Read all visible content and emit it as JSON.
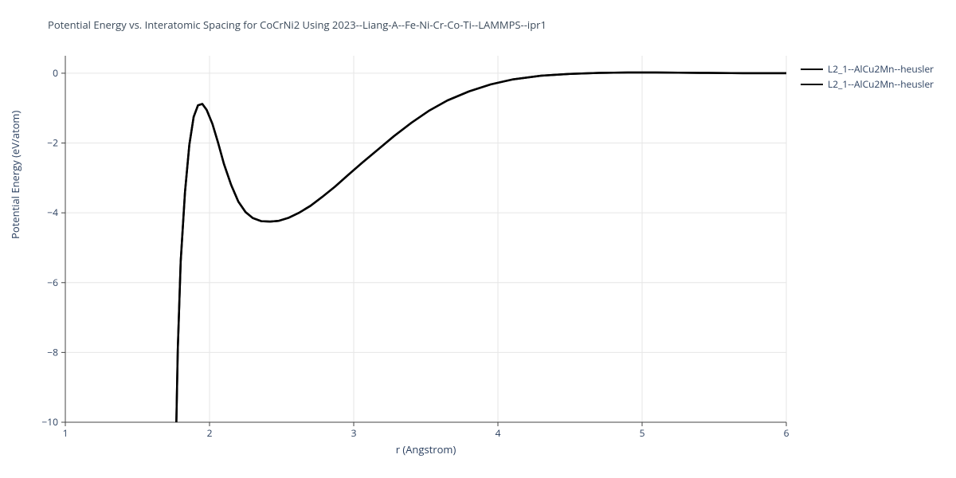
{
  "chart": {
    "title": "Potential Energy vs. Interatomic Spacing for CoCrNi2 Using 2023--Liang-A--Fe-Ni-Cr-Co-Ti--LAMMPS--ipr1",
    "xlabel": "r (Angstrom)",
    "ylabel": "Potential Energy (eV/atom)",
    "xlim": [
      1,
      6
    ],
    "ylim": [
      -10,
      0.5
    ],
    "xticks": [
      1,
      2,
      3,
      4,
      5,
      6
    ],
    "yticks": [
      -10,
      -8,
      -6,
      -4,
      -2,
      0
    ],
    "xtick_labels": [
      "1",
      "2",
      "3",
      "4",
      "5",
      "6"
    ],
    "ytick_labels": [
      "−10",
      "−8",
      "−6",
      "−4",
      "−2",
      "0"
    ],
    "background_color": "#ffffff",
    "grid_color": "#e6e6e6",
    "axis_color": "#444444",
    "tick_label_fontsize": 12,
    "title_fontsize": 13,
    "label_fontsize": 13,
    "line_width": 2.5,
    "series": [
      {
        "name": "L2_1--AlCu2Mn--heusler",
        "color": "#000000",
        "x": [
          1.77,
          1.78,
          1.8,
          1.83,
          1.86,
          1.89,
          1.92,
          1.95,
          1.98,
          2.02,
          2.06,
          2.1,
          2.15,
          2.2,
          2.25,
          2.3,
          2.36,
          2.42,
          2.48,
          2.55,
          2.62,
          2.7,
          2.78,
          2.87,
          2.96,
          3.06,
          3.17,
          3.28,
          3.4,
          3.52,
          3.65,
          3.8,
          3.95,
          4.1,
          4.3,
          4.5,
          4.7,
          4.9,
          5.1,
          5.4,
          5.7,
          6.0
        ],
        "y": [
          -10.0,
          -7.9,
          -5.4,
          -3.4,
          -2.05,
          -1.25,
          -0.92,
          -0.88,
          -1.05,
          -1.45,
          -2.0,
          -2.6,
          -3.2,
          -3.68,
          -3.98,
          -4.15,
          -4.24,
          -4.25,
          -4.23,
          -4.14,
          -4.0,
          -3.8,
          -3.55,
          -3.25,
          -2.92,
          -2.56,
          -2.18,
          -1.8,
          -1.42,
          -1.08,
          -0.78,
          -0.52,
          -0.32,
          -0.18,
          -0.07,
          -0.02,
          0.01,
          0.02,
          0.02,
          0.01,
          0.0,
          0.0
        ]
      },
      {
        "name": "L2_1--AlCu2Mn--heusler",
        "color": "#000000",
        "x": [
          1.77,
          1.78,
          1.8,
          1.83,
          1.86,
          1.89,
          1.92,
          1.95,
          1.98,
          2.02,
          2.06,
          2.1,
          2.15,
          2.2,
          2.25,
          2.3,
          2.36,
          2.42,
          2.48,
          2.55,
          2.62,
          2.7,
          2.78,
          2.87,
          2.96,
          3.06,
          3.17,
          3.28,
          3.4,
          3.52,
          3.65,
          3.8,
          3.95,
          4.1,
          4.3,
          4.5,
          4.7,
          4.9,
          5.1,
          5.4,
          5.7,
          6.0
        ],
        "y": [
          -10.0,
          -7.9,
          -5.4,
          -3.4,
          -2.05,
          -1.25,
          -0.92,
          -0.88,
          -1.05,
          -1.45,
          -2.0,
          -2.6,
          -3.2,
          -3.68,
          -3.98,
          -4.15,
          -4.24,
          -4.25,
          -4.23,
          -4.14,
          -4.0,
          -3.8,
          -3.55,
          -3.25,
          -2.92,
          -2.56,
          -2.18,
          -1.8,
          -1.42,
          -1.08,
          -0.78,
          -0.52,
          -0.32,
          -0.18,
          -0.07,
          -0.02,
          0.01,
          0.02,
          0.02,
          0.01,
          0.0,
          0.0
        ]
      }
    ]
  }
}
